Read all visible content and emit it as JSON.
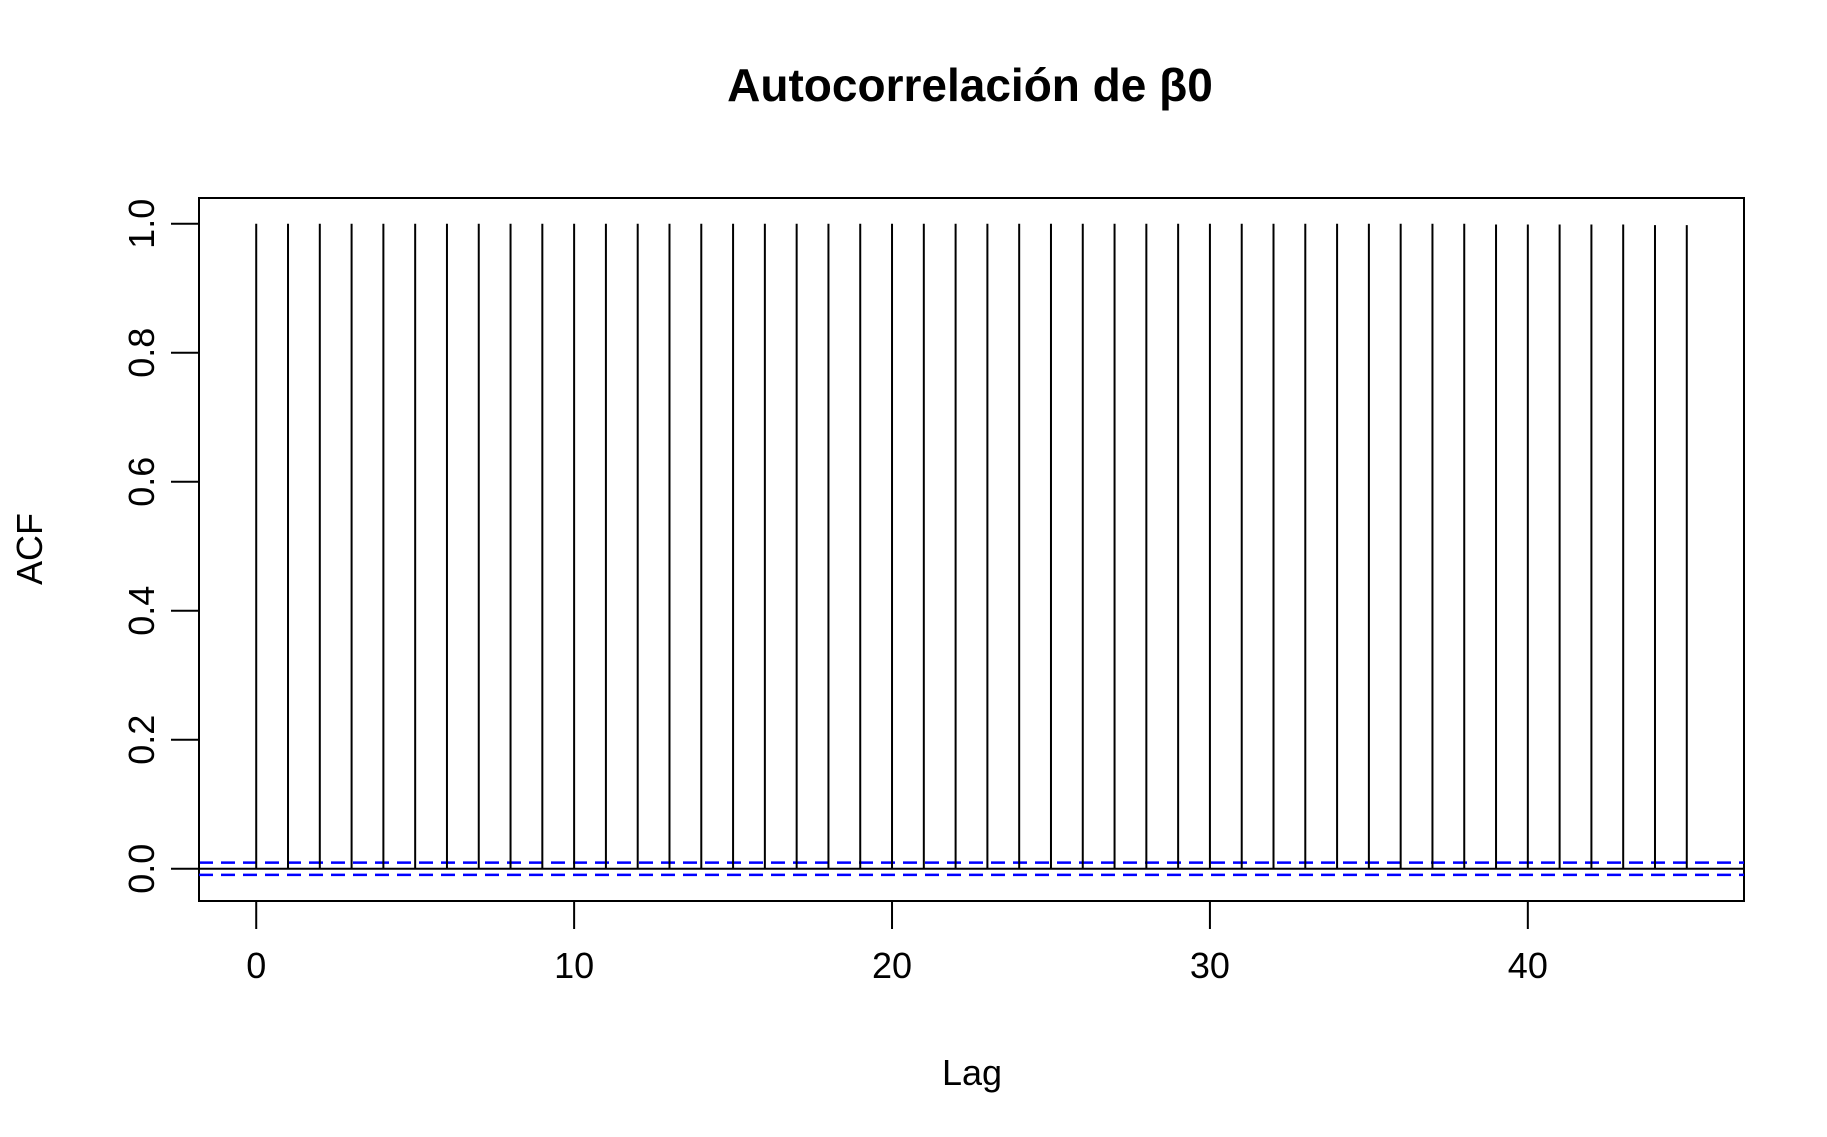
{
  "chart_data": {
    "type": "bar",
    "title": "Autocorrelación de β0",
    "xlabel": "Lag",
    "ylabel": "ACF",
    "x": [
      0,
      1,
      2,
      3,
      4,
      5,
      6,
      7,
      8,
      9,
      10,
      11,
      12,
      13,
      14,
      15,
      16,
      17,
      18,
      19,
      20,
      21,
      22,
      23,
      24,
      25,
      26,
      27,
      28,
      29,
      30,
      31,
      32,
      33,
      34,
      35,
      36,
      37,
      38,
      39,
      40,
      41,
      42,
      43,
      44,
      45
    ],
    "values": [
      1.0,
      1.0,
      1.0,
      1.0,
      1.0,
      1.0,
      1.0,
      1.0,
      1.0,
      1.0,
      1.0,
      1.0,
      1.0,
      1.0,
      1.0,
      1.0,
      1.0,
      1.0,
      1.0,
      1.0,
      1.0,
      1.0,
      1.0,
      1.0,
      1.0,
      1.0,
      1.0,
      1.0,
      1.0,
      1.0,
      1.0,
      1.0,
      1.0,
      1.0,
      1.0,
      1.0,
      1.0,
      1.0,
      1.0,
      0.999,
      0.999,
      0.999,
      0.999,
      0.999,
      0.998,
      0.998
    ],
    "xlim": [
      -1.8,
      46.8
    ],
    "ylim": [
      -0.05,
      1.04
    ],
    "xticks": [
      0,
      10,
      20,
      30,
      40
    ],
    "xtick_labels": [
      "0",
      "10",
      "20",
      "30",
      "40"
    ],
    "yticks": [
      0.0,
      0.2,
      0.4,
      0.6,
      0.8,
      1.0
    ],
    "ytick_labels": [
      "0.0",
      "0.2",
      "0.4",
      "0.6",
      "0.8",
      "1.0"
    ],
    "confidence_bounds": [
      0.0095,
      -0.0095
    ],
    "zero_line": 0,
    "grid": false,
    "colors": {
      "bars": "#000000",
      "confidence": "#0000ff",
      "axes": "#000000"
    }
  }
}
